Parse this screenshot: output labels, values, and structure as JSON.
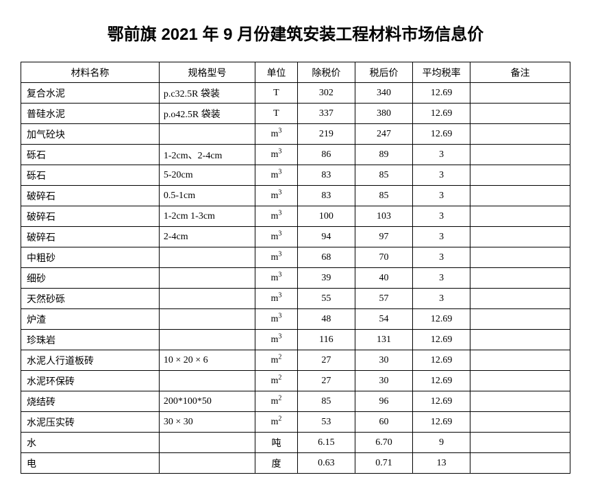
{
  "doc_title": "鄂前旗 2021 年 9 月份建筑安装工程材料市场信息价",
  "headers": {
    "name": "材料名称",
    "spec": "规格型号",
    "unit": "单位",
    "pre": "除税价",
    "post": "税后价",
    "rate": "平均税率",
    "note": "备注"
  },
  "rows": [
    {
      "name": "复合水泥",
      "spec": "p.c32.5R  袋装",
      "unit": "T",
      "pre": "302",
      "post": "340",
      "rate": "12.69",
      "note": ""
    },
    {
      "name": "普硅水泥",
      "spec": "p.o42.5R  袋装",
      "unit": "T",
      "pre": "337",
      "post": "380",
      "rate": "12.69",
      "note": ""
    },
    {
      "name": "加气砼块",
      "spec": "",
      "unit": "m3",
      "pre": "219",
      "post": "247",
      "rate": "12.69",
      "note": ""
    },
    {
      "name": "砾石",
      "spec": "1-2cm、2-4cm",
      "unit": "m3",
      "pre": "86",
      "post": "89",
      "rate": "3",
      "note": ""
    },
    {
      "name": "砾石",
      "spec": "5-20cm",
      "unit": "m3",
      "pre": "83",
      "post": "85",
      "rate": "3",
      "note": ""
    },
    {
      "name": "破碎石",
      "spec": "0.5-1cm",
      "unit": "m3",
      "pre": "83",
      "post": "85",
      "rate": "3",
      "note": ""
    },
    {
      "name": "破碎石",
      "spec": "1-2cm 1-3cm",
      "unit": "m3",
      "pre": "100",
      "post": "103",
      "rate": "3",
      "note": ""
    },
    {
      "name": "破碎石",
      "spec": "2-4cm",
      "unit": "m3",
      "pre": "94",
      "post": "97",
      "rate": "3",
      "note": ""
    },
    {
      "name": "中粗砂",
      "spec": "",
      "unit": "m3",
      "pre": "68",
      "post": "70",
      "rate": "3",
      "note": ""
    },
    {
      "name": "细砂",
      "spec": "",
      "unit": "m3",
      "pre": "39",
      "post": "40",
      "rate": "3",
      "note": ""
    },
    {
      "name": "天然砂砾",
      "spec": "",
      "unit": "m3",
      "pre": "55",
      "post": "57",
      "rate": "3",
      "note": ""
    },
    {
      "name": "炉渣",
      "spec": "",
      "unit": "m3",
      "pre": "48",
      "post": "54",
      "rate": "12.69",
      "note": ""
    },
    {
      "name": "珍珠岩",
      "spec": "",
      "unit": "m3",
      "pre": "116",
      "post": "131",
      "rate": "12.69",
      "note": ""
    },
    {
      "name": "水泥人行道板砖",
      "spec": "10 × 20 × 6",
      "unit": "m2",
      "pre": "27",
      "post": "30",
      "rate": "12.69",
      "note": ""
    },
    {
      "name": "水泥环保砖",
      "spec": "",
      "unit": "m2",
      "pre": "27",
      "post": "30",
      "rate": "12.69",
      "note": ""
    },
    {
      "name": "烧结砖",
      "spec": "200*100*50",
      "unit": "m2",
      "pre": "85",
      "post": "96",
      "rate": "12.69",
      "note": ""
    },
    {
      "name": "水泥压实砖",
      "spec": "30 × 30",
      "unit": "m2",
      "pre": "53",
      "post": "60",
      "rate": "12.69",
      "note": ""
    },
    {
      "name": "水",
      "spec": "",
      "unit": "吨",
      "pre": "6.15",
      "post": "6.70",
      "rate": "9",
      "note": ""
    },
    {
      "name": "电",
      "spec": "",
      "unit": "度",
      "pre": "0.63",
      "post": "0.71",
      "rate": "13",
      "note": ""
    }
  ]
}
